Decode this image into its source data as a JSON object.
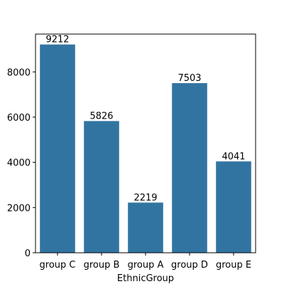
{
  "chart_data": {
    "type": "bar",
    "categories": [
      "group C",
      "group B",
      "group A",
      "group D",
      "group E"
    ],
    "values": [
      9212,
      5826,
      2219,
      7503,
      4041
    ],
    "xlabel": "EthnicGroup",
    "ylabel": "",
    "ylim": [
      0,
      9672.6
    ],
    "yticks": [
      0,
      2000,
      4000,
      6000,
      8000
    ],
    "bar_color": "#3274a1",
    "grid": false,
    "legend": "none"
  }
}
